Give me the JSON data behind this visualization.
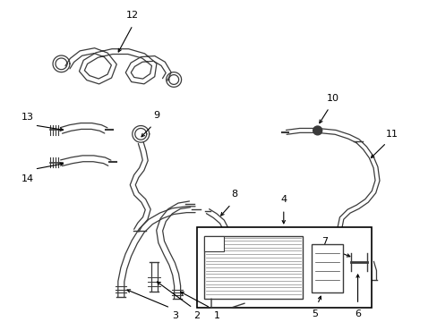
{
  "bg_color": "#ffffff",
  "line_color": "#3a3a3a",
  "text_color": "#000000",
  "fig_width": 4.89,
  "fig_height": 3.6,
  "dpi": 100
}
